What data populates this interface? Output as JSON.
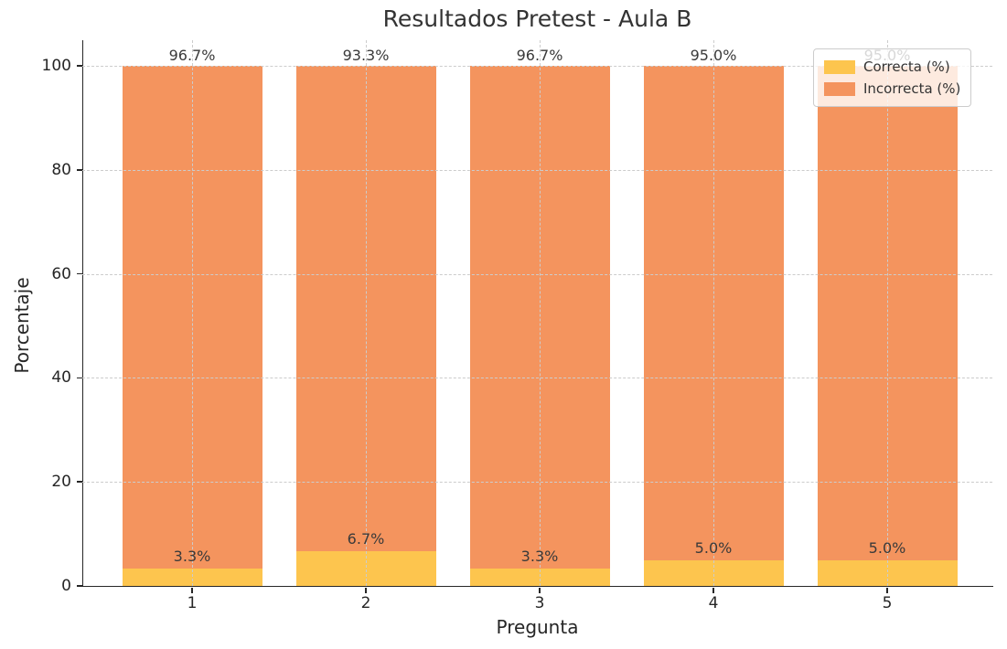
{
  "title": "Resultados Pretest - Aula B",
  "chart_data": {
    "type": "bar",
    "stacked": true,
    "title": "Resultados Pretest - Aula B",
    "xlabel": "Pregunta",
    "ylabel": "Porcentaje",
    "categories": [
      "1",
      "2",
      "3",
      "4",
      "5"
    ],
    "series": [
      {
        "name": "Correcta (%)",
        "color": "#FDC54E",
        "values": [
          3.3,
          6.7,
          3.3,
          5.0,
          5.0
        ],
        "labels": [
          "3.3%",
          "6.7%",
          "3.3%",
          "5.0%",
          "5.0%"
        ]
      },
      {
        "name": "Incorrecta (%)",
        "color": "#F4945E",
        "values": [
          96.7,
          93.3,
          96.7,
          95.0,
          95.0
        ],
        "labels": [
          "96.7%",
          "93.3%",
          "96.7%",
          "95.0%",
          "95.0%"
        ]
      }
    ],
    "ylim": [
      0,
      100
    ],
    "yticks": [
      0,
      20,
      40,
      60,
      80,
      100
    ],
    "grid": "dashed horizontal and vertical gridlines, drawn over bars",
    "legend_position": "upper right"
  },
  "legend": {
    "items": [
      {
        "label": "Correcta (%)",
        "color": "#FDC54E"
      },
      {
        "label": "Incorrecta (%)",
        "color": "#F4945E"
      }
    ]
  }
}
